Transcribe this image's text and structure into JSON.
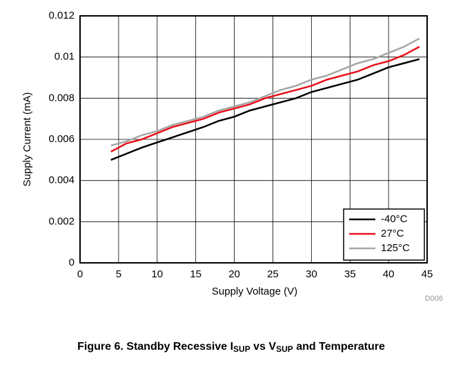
{
  "chart_data": {
    "type": "line",
    "x_label": "Supply Voltage (V)",
    "y_label": "Supply Current (mA)",
    "x": [
      4,
      6,
      8,
      10,
      12,
      14,
      16,
      18,
      20,
      22,
      24,
      26,
      28,
      30,
      32,
      34,
      36,
      38,
      40,
      42,
      44
    ],
    "series": [
      {
        "name": "-40°C",
        "color": "#000000",
        "values": [
          0.005,
          0.0053,
          0.0056,
          0.00585,
          0.0061,
          0.00635,
          0.0066,
          0.0069,
          0.0071,
          0.0074,
          0.0076,
          0.0078,
          0.008,
          0.0083,
          0.0085,
          0.0087,
          0.0089,
          0.0092,
          0.0095,
          0.0097,
          0.0099
        ]
      },
      {
        "name": "27°C",
        "color": "#e8121d",
        "values": [
          0.0054,
          0.0058,
          0.006,
          0.0063,
          0.0066,
          0.0068,
          0.007,
          0.0073,
          0.0075,
          0.0077,
          0.008,
          0.0082,
          0.0084,
          0.0086,
          0.0089,
          0.0091,
          0.0093,
          0.0096,
          0.0098,
          0.0101,
          0.0105
        ]
      },
      {
        "name": "125°C",
        "color": "#a6a6a6",
        "values": [
          0.0057,
          0.0059,
          0.0062,
          0.0064,
          0.0067,
          0.0069,
          0.0071,
          0.0074,
          0.0076,
          0.0078,
          0.0081,
          0.0084,
          0.0086,
          0.0089,
          0.0091,
          0.0094,
          0.0097,
          0.0099,
          0.0102,
          0.0105,
          0.0109
        ]
      }
    ],
    "xlim": [
      0,
      45
    ],
    "xticks": [
      0,
      5,
      10,
      15,
      20,
      25,
      30,
      35,
      40,
      45
    ],
    "ylim": [
      0,
      0.012
    ],
    "yticks": [
      0,
      0.002,
      0.004,
      0.006,
      0.008,
      0.01,
      0.012
    ],
    "grid": true,
    "legend": "lower-right",
    "code": "D006",
    "caption": [
      "Figure 6. Standby Recessive I",
      "SUP",
      " vs V",
      "SUP",
      " and Temperature"
    ]
  }
}
